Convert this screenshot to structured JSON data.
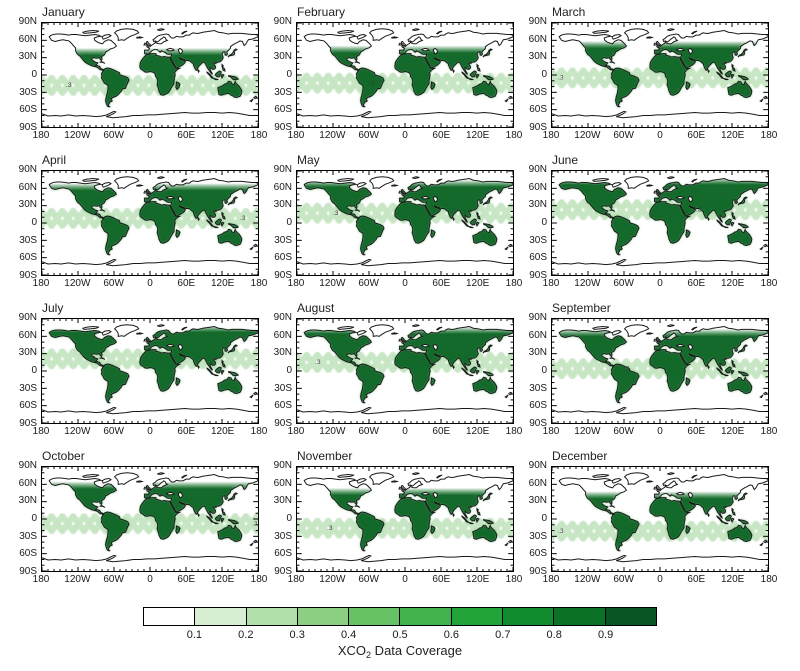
{
  "figure": {
    "type": "multi-panel world map grid",
    "contour_label": ".3",
    "background_color": "#ffffff",
    "coastline_color": "#1a1a1a"
  },
  "months": [
    {
      "name": "January",
      "glint_center_lat": -18,
      "land_north_limit_lat": 40,
      "contour_label_lon": -140
    },
    {
      "name": "February",
      "glint_center_lat": -14,
      "land_north_limit_lat": 44,
      "contour_label_lon": -60
    },
    {
      "name": "March",
      "glint_center_lat": -5,
      "land_north_limit_lat": 52,
      "contour_label_lon": -170
    },
    {
      "name": "April",
      "glint_center_lat": 8,
      "land_north_limit_lat": 62,
      "contour_label_lon": 150
    },
    {
      "name": "May",
      "glint_center_lat": 17,
      "land_north_limit_lat": 68,
      "contour_label_lon": -120
    },
    {
      "name": "June",
      "glint_center_lat": 23,
      "land_north_limit_lat": 72,
      "contour_label_lon": 60
    },
    {
      "name": "July",
      "glint_center_lat": 21,
      "land_north_limit_lat": 73,
      "contour_label_lon": -100
    },
    {
      "name": "August",
      "glint_center_lat": 15,
      "land_north_limit_lat": 70,
      "contour_label_lon": -150
    },
    {
      "name": "September",
      "glint_center_lat": 4,
      "land_north_limit_lat": 66,
      "contour_label_lon": -60
    },
    {
      "name": "October",
      "glint_center_lat": -8,
      "land_north_limit_lat": 58,
      "contour_label_lon": 170
    },
    {
      "name": "November",
      "glint_center_lat": -16,
      "land_north_limit_lat": 47,
      "contour_label_lon": -130
    },
    {
      "name": "December",
      "glint_center_lat": -21,
      "land_north_limit_lat": 41,
      "contour_label_lon": -170
    }
  ],
  "axes": {
    "lat_tick_labels": [
      "90N",
      "60N",
      "30N",
      "0",
      "30S",
      "60S",
      "90S"
    ],
    "lat_tick_values": [
      90,
      60,
      30,
      0,
      -30,
      -60,
      -90
    ],
    "lon_tick_labels": [
      "180",
      "120W",
      "60W",
      "0",
      "60E",
      "120E",
      "180"
    ],
    "lon_tick_values": [
      -180,
      -120,
      -60,
      0,
      60,
      120,
      180
    ]
  },
  "colorbar": {
    "tick_labels": [
      "0.1",
      "0.2",
      "0.3",
      "0.4",
      "0.5",
      "0.6",
      "0.7",
      "0.8",
      "0.9"
    ],
    "segment_colors": [
      "#ffffff",
      "#d9efd3",
      "#b2e0aa",
      "#8ccf83",
      "#66c264",
      "#41b24d",
      "#22a43a",
      "#128b2f",
      "#0a7127",
      "#065522"
    ],
    "label_prefix": "XCO",
    "label_sub": "2",
    "label_suffix": " Data Coverage"
  },
  "map_colors": {
    "land_coverage_dark": "#0f6628",
    "land_coverage_soft": "#5cb45f",
    "glint_band": "#7cc474"
  }
}
